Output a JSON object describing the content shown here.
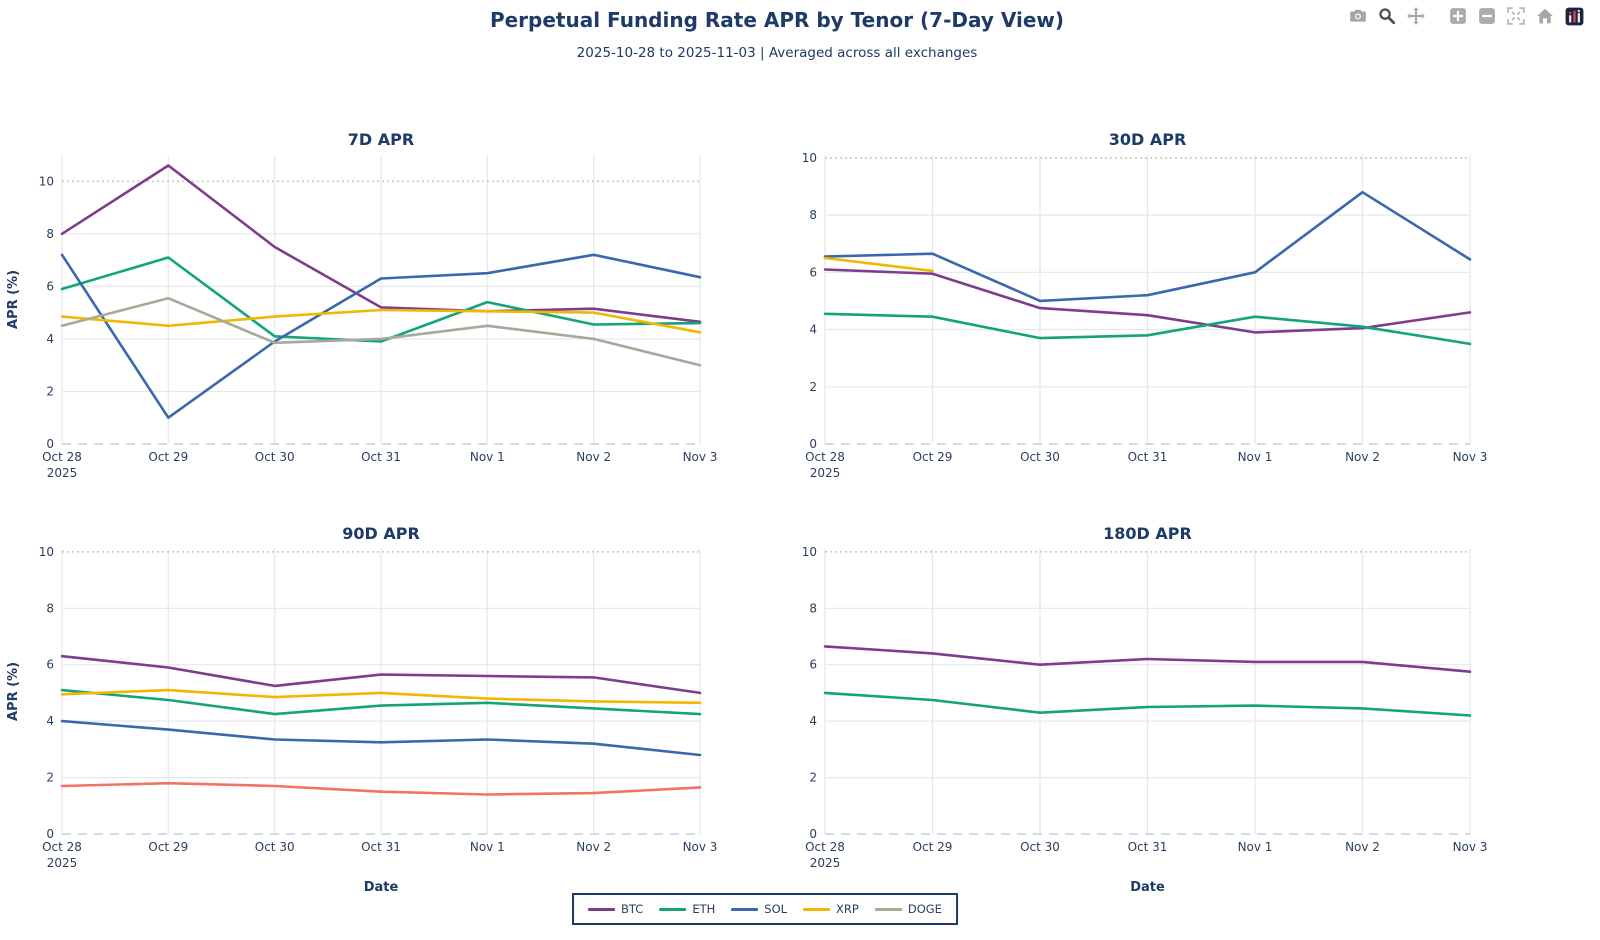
{
  "header": {
    "title": "Perpetual Funding Rate APR by Tenor (7-Day View)",
    "subtitle": "2025-10-28 to 2025-11-03 | Averaged across all exchanges"
  },
  "modebar": {
    "icons": [
      "camera",
      "zoom",
      "pan",
      "zoom-in",
      "zoom-out",
      "autoscale",
      "reset-axes",
      "plotly-logo"
    ]
  },
  "colors": {
    "title_text": "#1E3A66",
    "tick_text": "#2A3F5F",
    "gridline": "#E5E7E9",
    "zero_line": "#C7CDD6",
    "threshold_line": "#B8D6BB",
    "legend_border": "#1E3A66",
    "btc": "#7F3C8D",
    "eth": "#11A579",
    "sol": "#3969AC",
    "xrp": "#F2B701",
    "doge": "#A5AA99",
    "doge_90d": "#F07364"
  },
  "legend": {
    "items": [
      {
        "label": "BTC",
        "color": "#7F3C8D"
      },
      {
        "label": "ETH",
        "color": "#11A579"
      },
      {
        "label": "SOL",
        "color": "#3969AC"
      },
      {
        "label": "XRP",
        "color": "#F2B701"
      },
      {
        "label": "DOGE",
        "color": "#A5AA99"
      }
    ],
    "position": "bottom-center"
  },
  "chart_data": [
    {
      "type": "line",
      "title": "7D APR",
      "xlabel": "",
      "ylabel": "APR (%)",
      "x": [
        "Oct 28",
        "Oct 29",
        "Oct 30",
        "Oct 31",
        "Nov 1",
        "Nov 2",
        "Nov 3"
      ],
      "x_year": "2025",
      "ylim": [
        0,
        11.0
      ],
      "y_ticks": [
        0,
        2,
        4,
        6,
        8,
        10
      ],
      "threshold_y": 10,
      "grid": true,
      "series": [
        {
          "name": "BTC",
          "color": "#7F3C8D",
          "values": [
            8.0,
            10.6,
            7.5,
            5.2,
            5.05,
            5.15,
            4.65
          ]
        },
        {
          "name": "ETH",
          "color": "#11A579",
          "values": [
            5.9,
            7.1,
            4.1,
            3.9,
            5.4,
            4.55,
            4.6
          ]
        },
        {
          "name": "SOL",
          "color": "#3969AC",
          "values": [
            7.2,
            1.0,
            3.9,
            6.3,
            6.5,
            7.2,
            6.35
          ]
        },
        {
          "name": "XRP",
          "color": "#F2B701",
          "values": [
            4.85,
            4.5,
            4.85,
            5.1,
            5.05,
            5.0,
            4.25
          ]
        },
        {
          "name": "DOGE",
          "color": "#A5AA99",
          "values": [
            4.5,
            5.55,
            3.85,
            4.0,
            4.5,
            4.0,
            3.0
          ]
        }
      ]
    },
    {
      "type": "line",
      "title": "30D APR",
      "xlabel": "",
      "ylabel": "",
      "x": [
        "Oct 28",
        "Oct 29",
        "Oct 30",
        "Oct 31",
        "Nov 1",
        "Nov 2",
        "Nov 3"
      ],
      "x_year": "2025",
      "ylim": [
        0,
        10.1
      ],
      "y_ticks": [
        0,
        2,
        4,
        6,
        8,
        10
      ],
      "threshold_y": 10,
      "grid": true,
      "series": [
        {
          "name": "BTC",
          "color": "#7F3C8D",
          "values": [
            6.1,
            5.95,
            4.75,
            4.5,
            3.9,
            4.05,
            4.6
          ]
        },
        {
          "name": "ETH",
          "color": "#11A579",
          "values": [
            4.55,
            4.45,
            3.7,
            3.8,
            4.45,
            4.1,
            3.5
          ]
        },
        {
          "name": "SOL",
          "color": "#3969AC",
          "values": [
            6.55,
            6.65,
            5.0,
            5.2,
            6.0,
            8.8,
            6.45
          ]
        },
        {
          "name": "XRP",
          "color": "#F2B701",
          "values": [
            6.5,
            6.05,
            null,
            null,
            null,
            null,
            null
          ]
        }
      ]
    },
    {
      "type": "line",
      "title": "90D APR",
      "xlabel": "Date",
      "ylabel": "APR (%)",
      "x": [
        "Oct 28",
        "Oct 29",
        "Oct 30",
        "Oct 31",
        "Nov 1",
        "Nov 2",
        "Nov 3"
      ],
      "x_year": "2025",
      "ylim": [
        0,
        10.1
      ],
      "y_ticks": [
        0,
        2,
        4,
        6,
        8,
        10
      ],
      "threshold_y": 10,
      "grid": true,
      "series": [
        {
          "name": "BTC",
          "color": "#7F3C8D",
          "values": [
            6.3,
            5.9,
            5.25,
            5.65,
            5.6,
            5.55,
            5.0
          ]
        },
        {
          "name": "ETH",
          "color": "#11A579",
          "values": [
            5.1,
            4.75,
            4.25,
            4.55,
            4.65,
            4.45,
            4.25
          ]
        },
        {
          "name": "SOL",
          "color": "#3969AC",
          "values": [
            4.0,
            3.7,
            3.35,
            3.25,
            3.35,
            3.2,
            2.8
          ]
        },
        {
          "name": "XRP",
          "color": "#F2B701",
          "values": [
            4.95,
            5.1,
            4.85,
            5.0,
            4.8,
            4.7,
            4.65
          ]
        },
        {
          "name": "DOGE",
          "color": "#F07364",
          "values": [
            1.7,
            1.8,
            1.7,
            1.5,
            1.4,
            1.45,
            1.65
          ]
        }
      ]
    },
    {
      "type": "line",
      "title": "180D APR",
      "xlabel": "Date",
      "ylabel": "",
      "x": [
        "Oct 28",
        "Oct 29",
        "Oct 30",
        "Oct 31",
        "Nov 1",
        "Nov 2",
        "Nov 3"
      ],
      "x_year": "2025",
      "ylim": [
        0,
        10.1
      ],
      "y_ticks": [
        0,
        2,
        4,
        6,
        8,
        10
      ],
      "threshold_y": 10,
      "grid": true,
      "series": [
        {
          "name": "BTC",
          "color": "#7F3C8D",
          "values": [
            6.65,
            6.4,
            6.0,
            6.2,
            6.1,
            6.1,
            5.75
          ]
        },
        {
          "name": "ETH",
          "color": "#11A579",
          "values": [
            5.0,
            4.75,
            4.3,
            4.5,
            4.55,
            4.45,
            4.2
          ]
        }
      ]
    }
  ]
}
